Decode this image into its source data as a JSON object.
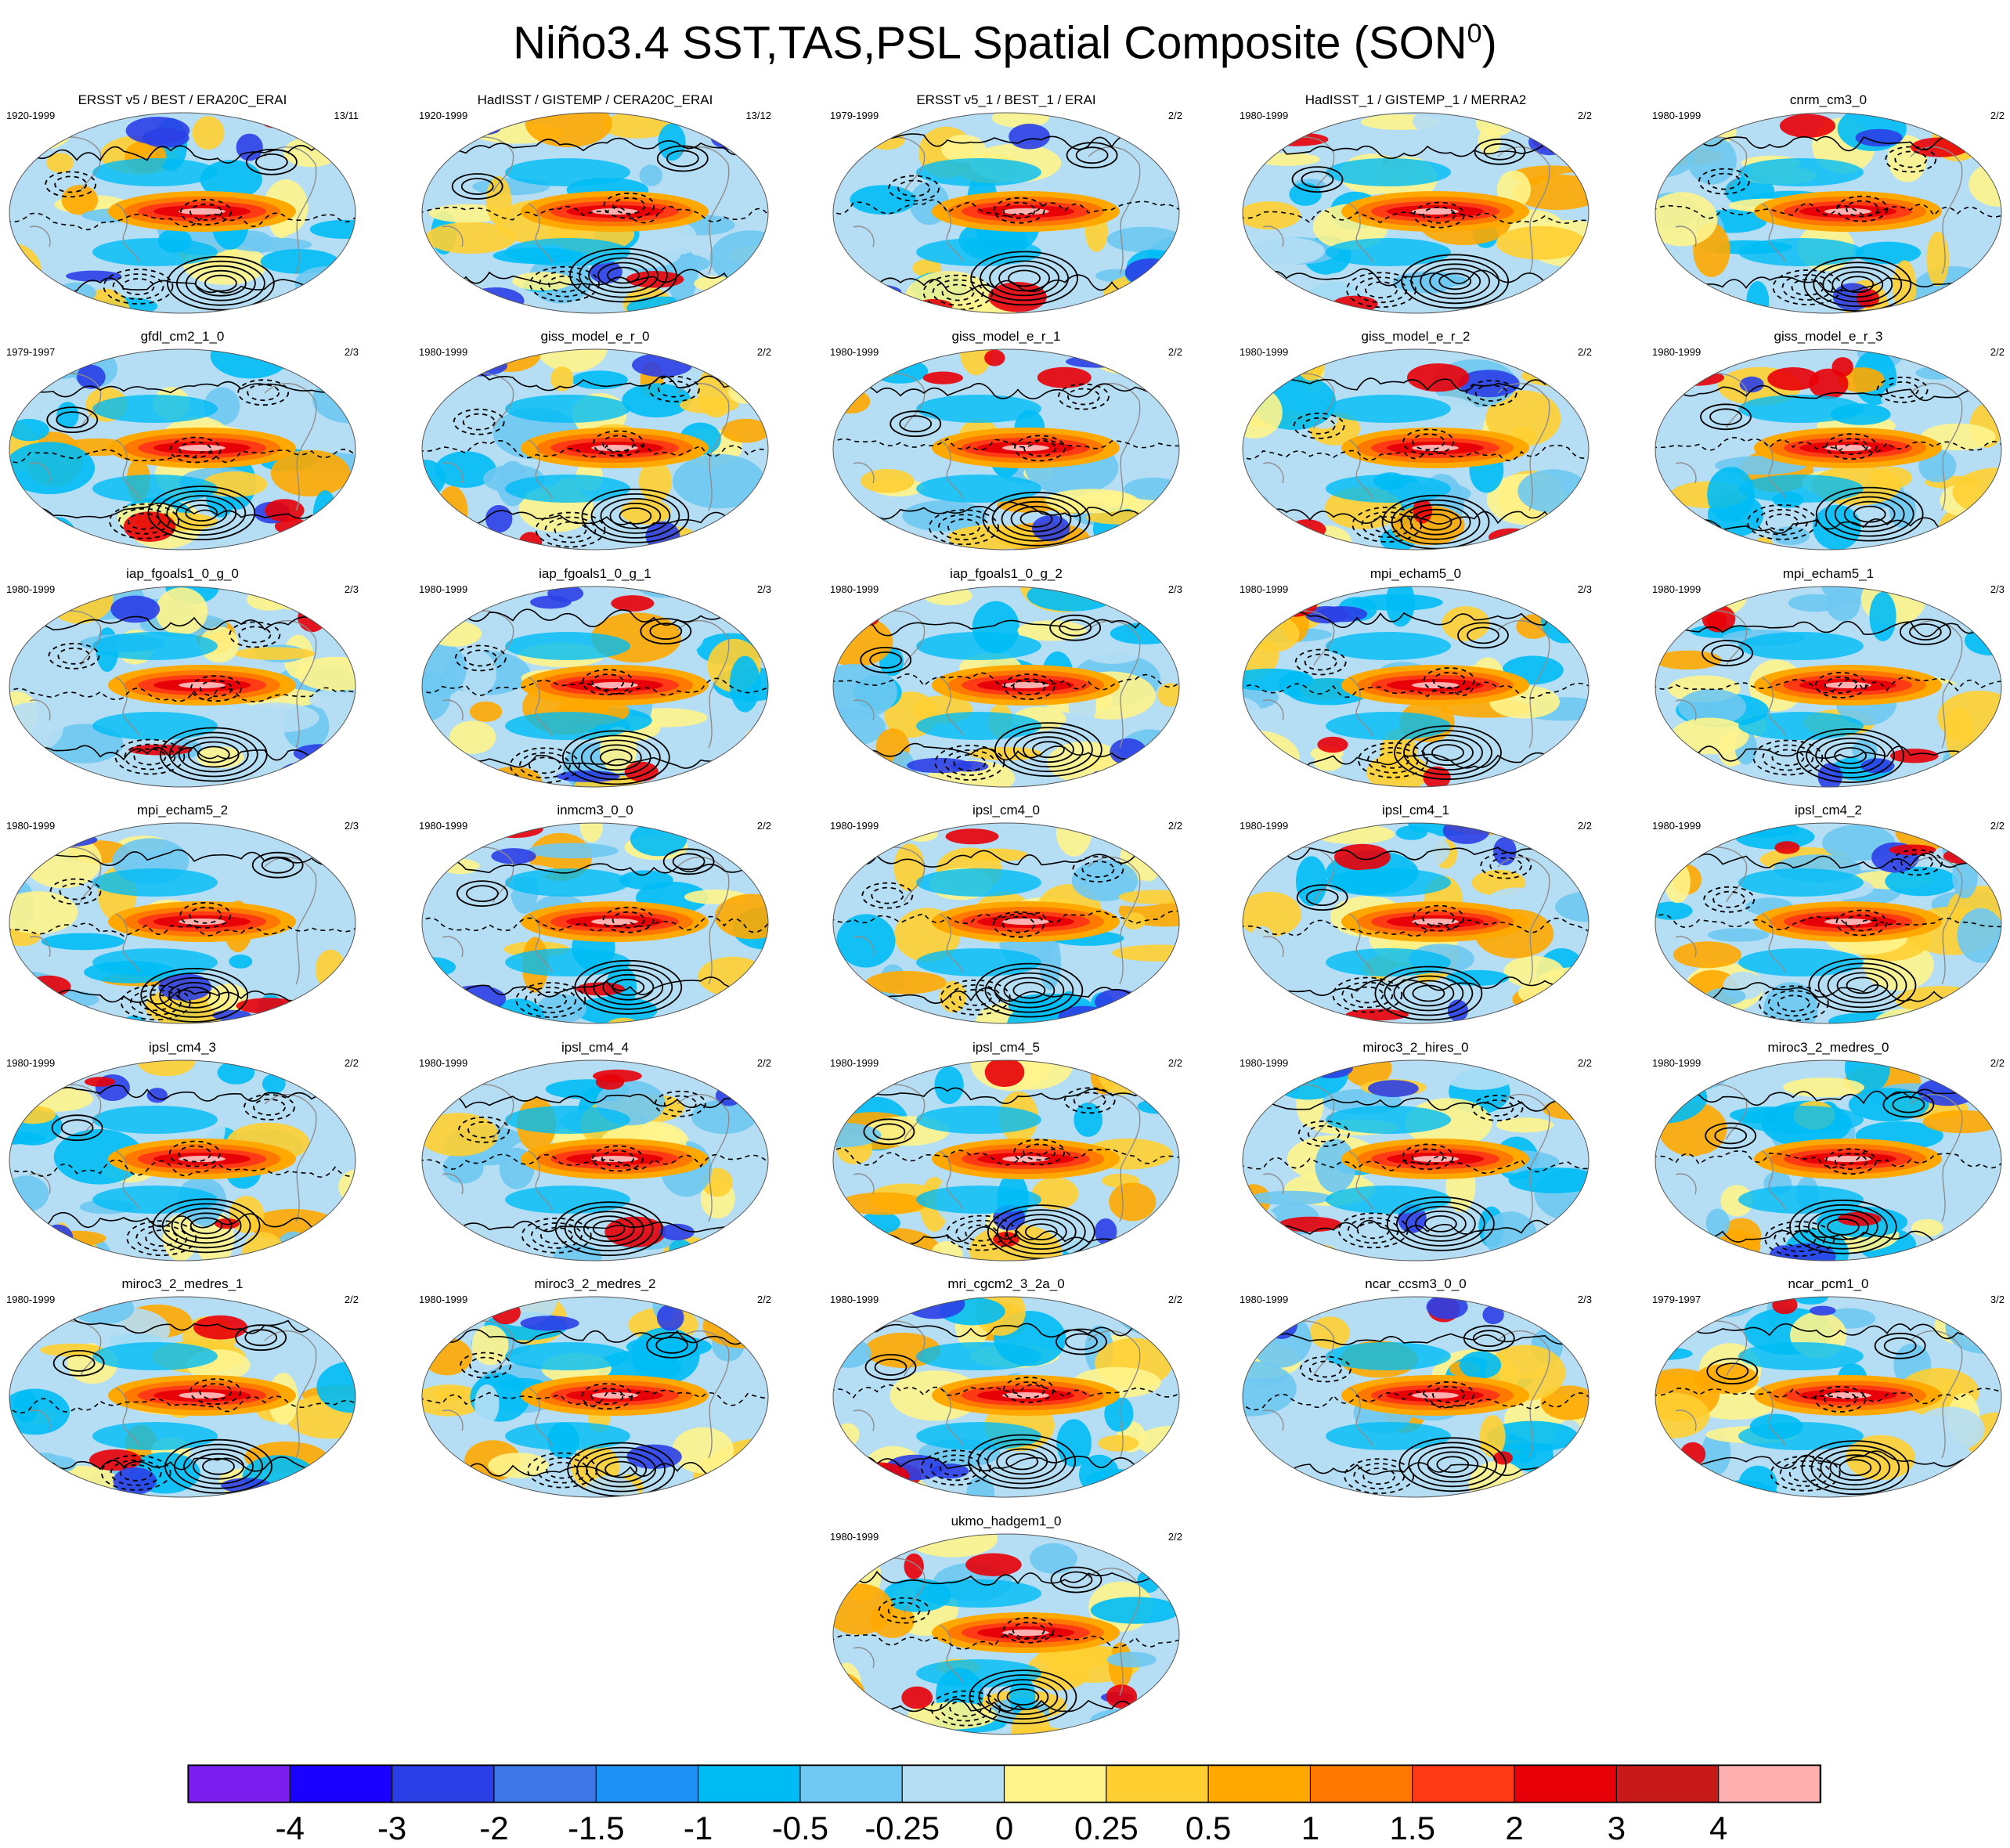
{
  "figure": {
    "title_main": "Niño3.4 SST,TAS,PSL Spatial Composite (SON",
    "title_sup": "0",
    "title_close": ")"
  },
  "chart_data": {
    "type": "heatmap",
    "description_kind": "small-multiples of global map composites with contour overlays",
    "panels": [
      {
        "title": "ERSST v5 / BEST / ERA20C_ERAI",
        "years": "1920-1999",
        "count": "13/11"
      },
      {
        "title": "HadISST / GISTEMP / CERA20C_ERAI",
        "years": "1920-1999",
        "count": "13/12"
      },
      {
        "title": "ERSST v5_1 / BEST_1 / ERAI",
        "years": "1979-1999",
        "count": "2/2"
      },
      {
        "title": "HadISST_1 / GISTEMP_1 / MERRA2",
        "years": "1980-1999",
        "count": "2/2"
      },
      {
        "title": "cnrm_cm3_0",
        "years": "1980-1999",
        "count": "2/2"
      },
      {
        "title": "gfdl_cm2_1_0",
        "years": "1979-1997",
        "count": "2/3"
      },
      {
        "title": "giss_model_e_r_0",
        "years": "1980-1999",
        "count": "2/2"
      },
      {
        "title": "giss_model_e_r_1",
        "years": "1980-1999",
        "count": "2/2"
      },
      {
        "title": "giss_model_e_r_2",
        "years": "1980-1999",
        "count": "2/2"
      },
      {
        "title": "giss_model_e_r_3",
        "years": "1980-1999",
        "count": "2/2"
      },
      {
        "title": "iap_fgoals1_0_g_0",
        "years": "1980-1999",
        "count": "2/3"
      },
      {
        "title": "iap_fgoals1_0_g_1",
        "years": "1980-1999",
        "count": "2/3"
      },
      {
        "title": "iap_fgoals1_0_g_2",
        "years": "1980-1999",
        "count": "2/3"
      },
      {
        "title": "mpi_echam5_0",
        "years": "1980-1999",
        "count": "2/3"
      },
      {
        "title": "mpi_echam5_1",
        "years": "1980-1999",
        "count": "2/3"
      },
      {
        "title": "mpi_echam5_2",
        "years": "1980-1999",
        "count": "2/3"
      },
      {
        "title": "inmcm3_0_0",
        "years": "1980-1999",
        "count": "2/2"
      },
      {
        "title": "ipsl_cm4_0",
        "years": "1980-1999",
        "count": "2/2"
      },
      {
        "title": "ipsl_cm4_1",
        "years": "1980-1999",
        "count": "2/2"
      },
      {
        "title": "ipsl_cm4_2",
        "years": "1980-1999",
        "count": "2/2"
      },
      {
        "title": "ipsl_cm4_3",
        "years": "1980-1999",
        "count": "2/2"
      },
      {
        "title": "ipsl_cm4_4",
        "years": "1980-1999",
        "count": "2/2"
      },
      {
        "title": "ipsl_cm4_5",
        "years": "1980-1999",
        "count": "2/2"
      },
      {
        "title": "miroc3_2_hires_0",
        "years": "1980-1999",
        "count": "2/2"
      },
      {
        "title": "miroc3_2_medres_0",
        "years": "1980-1999",
        "count": "2/2"
      },
      {
        "title": "miroc3_2_medres_1",
        "years": "1980-1999",
        "count": "2/2"
      },
      {
        "title": "miroc3_2_medres_2",
        "years": "1980-1999",
        "count": "2/2"
      },
      {
        "title": "mri_cgcm2_3_2a_0",
        "years": "1980-1999",
        "count": "2/2"
      },
      {
        "title": "ncar_ccsm3_0_0",
        "years": "1980-1999",
        "count": "2/3"
      },
      {
        "title": "ncar_pcm1_0",
        "years": "1979-1997",
        "count": "3/2"
      },
      {
        "title": "ukmo_hadgem1_0",
        "years": "1980-1999",
        "count": "2/2"
      }
    ],
    "colorbar": {
      "labels": [
        "-4",
        "-3",
        "-2",
        "-1.5",
        "-1",
        "-0.5",
        "-0.25",
        "0",
        "0.25",
        "0.5",
        "1",
        "1.5",
        "2",
        "3",
        "4"
      ],
      "colors": [
        "#7b1ff0",
        "#1a00ff",
        "#2b3fe6",
        "#3e78e8",
        "#1f92f5",
        "#00bcf5",
        "#6ec8f2",
        "#b5def5",
        "#fff48c",
        "#ffcf32",
        "#ffa800",
        "#ff7800",
        "#ff3a14",
        "#e80008",
        "#c91a1a",
        "#ffb0b0"
      ]
    }
  }
}
